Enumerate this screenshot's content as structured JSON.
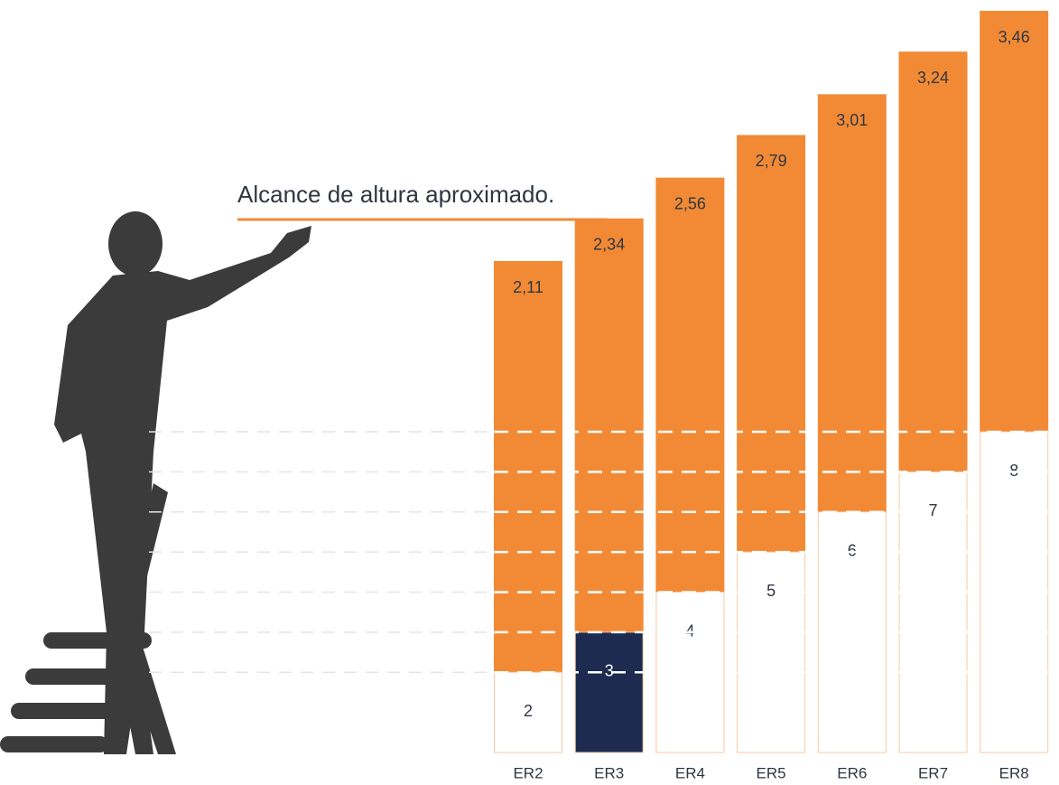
{
  "chart_data": {
    "type": "bar",
    "title": "Alcance de altura aproximado.",
    "categories": [
      "ER2",
      "ER3",
      "ER4",
      "ER5",
      "ER6",
      "ER7",
      "ER8"
    ],
    "series": [
      {
        "values": [
          2,
          3,
          4,
          5,
          6,
          7,
          8
        ],
        "colors": [
          "#ffffff",
          "#1c2b4f",
          "#ffffff",
          "#ffffff",
          "#ffffff",
          "#ffffff",
          "#ffffff"
        ]
      },
      {
        "values": [
          2.11,
          2.34,
          2.56,
          2.79,
          3.01,
          3.24,
          3.46
        ],
        "value_labels": [
          "2,11",
          "2,34",
          "2,56",
          "2,79",
          "3,01",
          "3,24",
          "3,46"
        ],
        "color": "#f28a35"
      }
    ]
  }
}
